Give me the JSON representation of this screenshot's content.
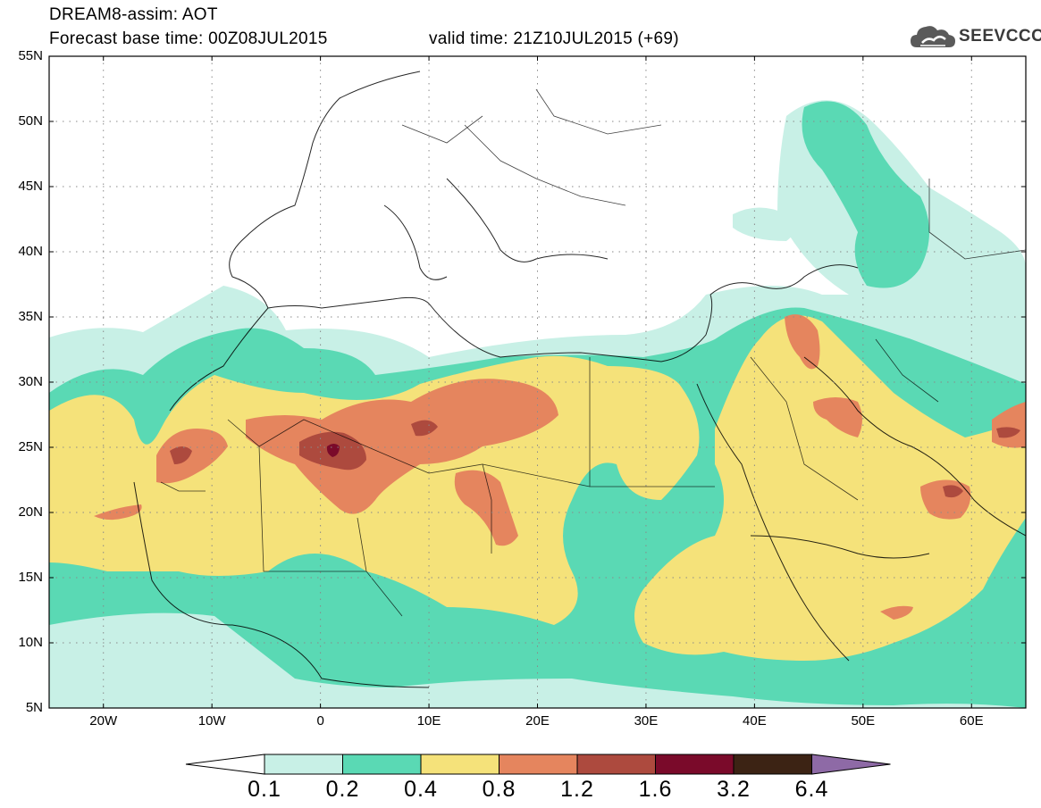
{
  "header": {
    "title": "DREAM8-assim: AOT",
    "base_time": "Forecast base time: 00Z08JUL2015",
    "valid_time": "valid time: 21Z10JUL2015 (+69)"
  },
  "logo": {
    "text": "SEEVCCC",
    "icon": "cloud-icon"
  },
  "map": {
    "variable": "Aerosol optical thickness",
    "lon_range": [
      -25,
      65
    ],
    "lat_range": [
      5,
      55
    ],
    "grid": "dotted",
    "lat_labels": [
      "55N",
      "50N",
      "45N",
      "40N",
      "35N",
      "30N",
      "25N",
      "20N",
      "15N",
      "10N",
      "5N"
    ],
    "lon_labels": [
      "20W",
      "10W",
      "0",
      "10E",
      "20E",
      "30E",
      "40E",
      "50E",
      "60E"
    ]
  },
  "colorbar": {
    "levels": [
      "0.1",
      "0.2",
      "0.4",
      "0.8",
      "1.2",
      "1.6",
      "3.2",
      "6.4"
    ],
    "colors": [
      "#ffffff",
      "#c8f0e6",
      "#5ad9b4",
      "#f5e27a",
      "#e5855e",
      "#ad4a3e",
      "#7a0a2a",
      "#3c2314",
      "#8e6aa6"
    ]
  }
}
